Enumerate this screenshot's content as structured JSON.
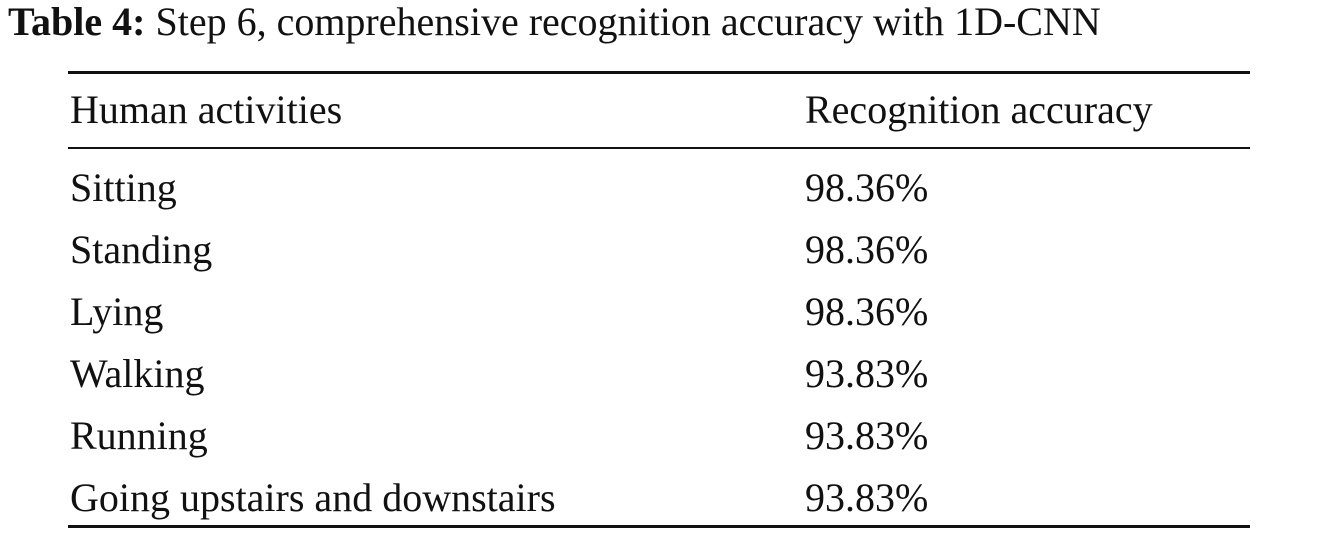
{
  "caption": {
    "label": "Table 4:",
    "text": "Step 6, comprehensive recognition accuracy with 1D-CNN"
  },
  "table": {
    "header": [
      "Human activities",
      "Recognition accuracy"
    ],
    "rows": [
      [
        "Sitting",
        "98.36%"
      ],
      [
        "Standing",
        "98.36%"
      ],
      [
        "Lying",
        "98.36%"
      ],
      [
        "Walking",
        "93.83%"
      ],
      [
        "Running",
        "93.83%"
      ],
      [
        "Going upstairs and downstairs",
        "93.83%"
      ]
    ]
  }
}
